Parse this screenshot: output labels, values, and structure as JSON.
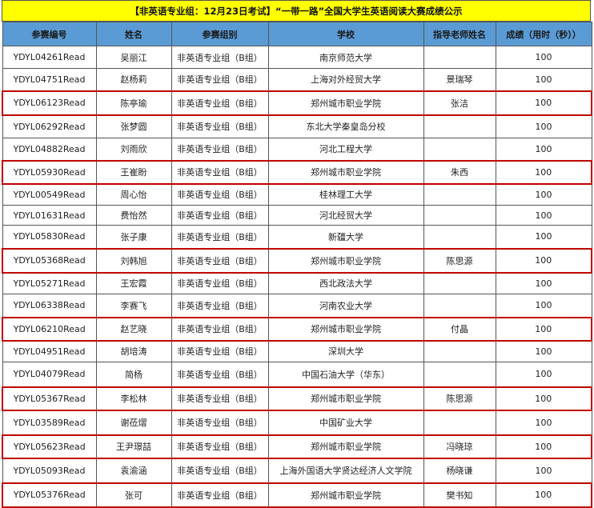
{
  "title": "【非英语专业组：12月23日考试】“一带一路”全国大学生英语阅读大赛成绩公示",
  "highlight_color": "#c00000",
  "header_color": "#5b9bd5",
  "title_color": "#ffff00",
  "columns": [
    "参赛编号",
    "姓名",
    "参赛组别",
    "学校",
    "指导老师姓名",
    "成绩（用时（秒））"
  ],
  "rows": [
    {
      "id": "YDYL04261Read",
      "name": "吴丽江",
      "group": "非英语专业组（B组）",
      "school": "南京师范大学",
      "teacher": "",
      "score": "100",
      "highlighted": false
    },
    {
      "id": "YDYL04751Read",
      "name": "赵杨莉",
      "group": "非英语专业组（B组）",
      "school": "上海对外经贸大学",
      "teacher": "景瑞琴",
      "score": "100",
      "highlighted": false
    },
    {
      "id": "YDYL06123Read",
      "name": "陈亭瑜",
      "group": "非英语专业组（B组）",
      "school": "郑州城市职业学院",
      "teacher": "张洁",
      "score": "100",
      "highlighted": true
    },
    {
      "id": "YDYL06292Read",
      "name": "张梦圆",
      "group": "非英语专业组（B组）",
      "school": "东北大学秦皇岛分校",
      "teacher": "",
      "score": "100",
      "highlighted": false
    },
    {
      "id": "YDYL04882Read",
      "name": "刘雨欣",
      "group": "非英语专业组（B组）",
      "school": "河北工程大学",
      "teacher": "",
      "score": "100",
      "highlighted": false
    },
    {
      "id": "YDYL05930Read",
      "name": "王崔盼",
      "group": "非英语专业组（B组）",
      "school": "郑州城市职业学院",
      "teacher": "朱西",
      "score": "100",
      "highlighted": true
    },
    {
      "id": "YDYL00549Read",
      "name": "周心怡",
      "group": "非英语专业组（B组）",
      "school": "桂林理工大学",
      "teacher": "",
      "score": "100",
      "highlighted": false
    },
    {
      "id": "YDYL01631Read",
      "name": "费怡然",
      "group": "非英语专业组（B组）",
      "school": "河北经贸大学",
      "teacher": "",
      "score": "100",
      "highlighted": false
    },
    {
      "id": "YDYL05830Read",
      "name": "张子康",
      "group": "非英语专业组（B组）",
      "school": "新疆大学",
      "teacher": "",
      "score": "100",
      "highlighted": false
    },
    {
      "id": "YDYL05368Read",
      "name": "刘韩旭",
      "group": "非英语专业组（B组）",
      "school": "郑州城市职业学院",
      "teacher": "陈思源",
      "score": "100",
      "highlighted": true
    },
    {
      "id": "YDYL05271Read",
      "name": "王宏霞",
      "group": "非英语专业组（B组）",
      "school": "西北政法大学",
      "teacher": "",
      "score": "100",
      "highlighted": false
    },
    {
      "id": "YDYL06338Read",
      "name": "李赛飞",
      "group": "非英语专业组（B组）",
      "school": "河南农业大学",
      "teacher": "",
      "score": "100",
      "highlighted": false
    },
    {
      "id": "YDYL06210Read",
      "name": "赵艺晓",
      "group": "非英语专业组（B组）",
      "school": "郑州城市职业学院",
      "teacher": "付晶",
      "score": "100",
      "highlighted": true
    },
    {
      "id": "YDYL04951Read",
      "name": "胡培涛",
      "group": "非英语专业组（B组）",
      "school": "深圳大学",
      "teacher": "",
      "score": "100",
      "highlighted": false
    },
    {
      "id": "YDYL04079Read",
      "name": "简杨",
      "group": "非英语专业组（B组）",
      "school": "中国石油大学（华东）",
      "teacher": "",
      "score": "100",
      "highlighted": false
    },
    {
      "id": "YDYL05367Read",
      "name": "李松林",
      "group": "非英语专业组（B组）",
      "school": "郑州城市职业学院",
      "teacher": "陈思源",
      "score": "100",
      "highlighted": true
    },
    {
      "id": "YDYL03589Read",
      "name": "谢莅熠",
      "group": "非英语专业组（B组）",
      "school": "中国矿业大学",
      "teacher": "",
      "score": "100",
      "highlighted": false
    },
    {
      "id": "YDYL05623Read",
      "name": "王尹璟喆",
      "group": "非英语专业组（B组）",
      "school": "郑州城市职业学院",
      "teacher": "冯晓琼",
      "score": "100",
      "highlighted": true
    },
    {
      "id": "YDYL05093Read",
      "name": "袁渝涵",
      "group": "非英语专业组（B组）",
      "school": "上海外国语大学贤达经济人文学院",
      "teacher": "杨晓谦",
      "score": "100",
      "highlighted": false
    },
    {
      "id": "YDYL05376Read",
      "name": "张可",
      "group": "非英语专业组（B组）",
      "school": "郑州城市职业学院",
      "teacher": "樊书知",
      "score": "100",
      "highlighted": true
    }
  ]
}
